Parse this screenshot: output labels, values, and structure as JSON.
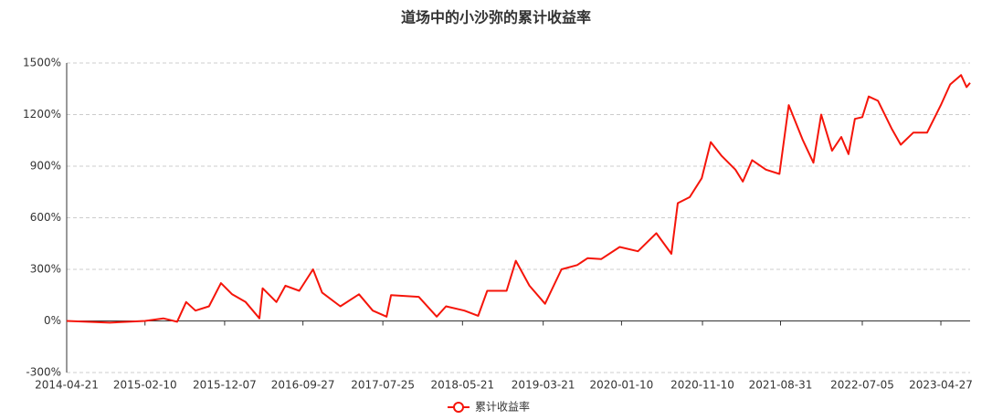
{
  "chart_data": {
    "type": "line",
    "title": "道场中的小沙弥的累计收益率",
    "x": [
      "2014-04-21",
      "2014-09-30",
      "2015-02-10",
      "2015-04-20",
      "2015-06-11",
      "2015-07-15",
      "2015-08-19",
      "2015-10-09",
      "2015-11-23",
      "2016-01-04",
      "2016-02-24",
      "2016-04-16",
      "2016-04-28",
      "2016-06-19",
      "2016-07-23",
      "2016-09-13",
      "2016-11-04",
      "2016-12-08",
      "2017-02-15",
      "2017-04-26",
      "2017-06-17",
      "2017-08-08",
      "2017-08-25",
      "2017-12-07",
      "2018-02-13",
      "2018-03-20",
      "2018-05-28",
      "2018-07-19",
      "2018-08-22",
      "2018-11-03",
      "2018-12-08",
      "2019-01-28",
      "2019-03-28",
      "2019-05-29",
      "2019-07-27",
      "2019-09-04",
      "2019-10-26",
      "2020-01-03",
      "2020-03-12",
      "2020-05-20",
      "2020-07-16",
      "2020-08-09",
      "2020-09-23",
      "2020-11-07",
      "2020-12-11",
      "2021-01-21",
      "2021-03-14",
      "2021-04-11",
      "2021-05-16",
      "2021-07-07",
      "2021-08-27",
      "2021-10-01",
      "2021-11-22",
      "2022-01-02",
      "2022-01-31",
      "2022-03-13",
      "2022-04-17",
      "2022-05-14",
      "2022-06-07",
      "2022-07-05",
      "2022-07-29",
      "2022-09-02",
      "2022-10-23",
      "2022-11-27",
      "2023-01-13",
      "2023-03-06",
      "2023-04-27",
      "2023-06-01",
      "2023-07-12",
      "2023-08-02",
      "2023-08-15"
    ],
    "series": [
      {
        "name": "累计收益率",
        "color": "#f5150a",
        "values": [
          0,
          -10,
          0,
          15,
          -5,
          110,
          60,
          85,
          220,
          155,
          110,
          15,
          190,
          110,
          205,
          175,
          300,
          165,
          85,
          155,
          60,
          25,
          150,
          140,
          25,
          85,
          60,
          30,
          175,
          175,
          350,
          205,
          100,
          300,
          325,
          365,
          360,
          430,
          405,
          510,
          390,
          685,
          720,
          830,
          1040,
          960,
          880,
          810,
          935,
          880,
          855,
          1255,
          1055,
          920,
          1200,
          990,
          1070,
          970,
          1175,
          1185,
          1305,
          1280,
          1120,
          1025,
          1095,
          1095,
          1255,
          1375,
          1430,
          1360,
          1385
        ]
      }
    ],
    "xlim": [
      "2014-04-21",
      "2023-08-15"
    ],
    "xticks": [
      "2014-04-21",
      "2015-02-10",
      "2015-12-07",
      "2016-09-27",
      "2017-07-25",
      "2018-05-21",
      "2019-03-21",
      "2020-01-10",
      "2020-11-10",
      "2021-08-31",
      "2022-07-05",
      "2023-04-27"
    ],
    "ylim": [
      -300,
      1500
    ],
    "yticks": [
      {
        "value": -300,
        "label": "-300%"
      },
      {
        "value": 0,
        "label": "0%"
      },
      {
        "value": 300,
        "label": "300%"
      },
      {
        "value": 600,
        "label": "600%"
      },
      {
        "value": 900,
        "label": "900%"
      },
      {
        "value": 1200,
        "label": "1200%"
      },
      {
        "value": 1500,
        "label": "1500%"
      }
    ],
    "grid": true
  }
}
